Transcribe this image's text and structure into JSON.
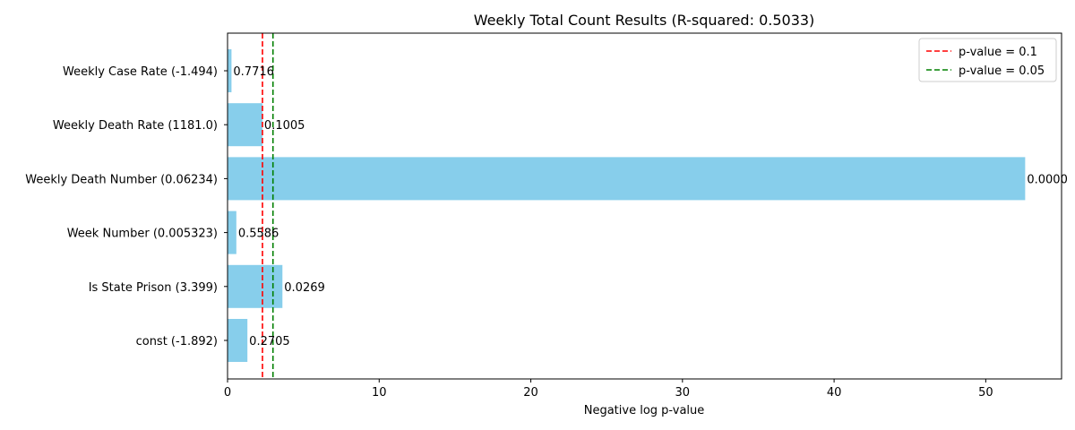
{
  "chart_data": {
    "type": "bar",
    "orientation": "horizontal",
    "title": "Weekly Total Count Results (R-squared: 0.5033)",
    "xlabel": "Negative log p-value",
    "ylabel": "",
    "xlim": [
      0,
      55
    ],
    "xticks": [
      0,
      10,
      20,
      30,
      40,
      50
    ],
    "grid": false,
    "bar_color": "#87ceeb",
    "categories": [
      "Weekly Case Rate (-1.494)",
      "Weekly Death Rate (1181.0)",
      "Weekly Death Number (0.06234)",
      "Week Number (0.005323)",
      "Is State Prison (3.399)",
      "const (-1.892)"
    ],
    "values": [
      0.26,
      2.3,
      52.6,
      0.58,
      3.62,
      1.31
    ],
    "data_labels": [
      "0.7716",
      "0.1005",
      "0.0000",
      "0.5586",
      "0.0269",
      "0.2705"
    ],
    "reference_lines": [
      {
        "label": "p-value = 0.1",
        "x": 2.3026,
        "color": "#ff0000",
        "style": "dashed"
      },
      {
        "label": "p-value = 0.05",
        "x": 2.9957,
        "color": "#008000",
        "style": "dashed"
      }
    ],
    "legend_position": "top-right"
  }
}
